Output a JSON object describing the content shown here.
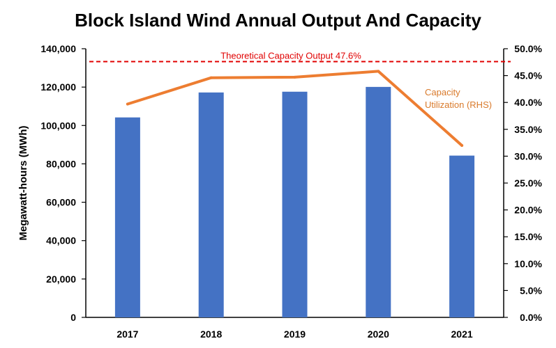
{
  "chart_data": {
    "type": "bar",
    "title": "Block Island Wind Annual Output And Capacity",
    "ylabel": "Megawatt-hours (MWh)",
    "xlabel": "",
    "categories": [
      "2017",
      "2018",
      "2019",
      "2020",
      "2021"
    ],
    "series": [
      {
        "type": "bar",
        "values": [
          104200,
          117200,
          117600,
          120100,
          84300
        ],
        "axis": "left",
        "color": "#4472c4"
      },
      {
        "type": "line",
        "name": "Capacity Utilization (RHS)",
        "values": [
          39.7,
          44.6,
          44.7,
          45.8,
          32.0
        ],
        "axis": "right",
        "color": "#ed7d31"
      }
    ],
    "reference_line": {
      "label": "Theoretical Capacity Output 47.6%",
      "value": 47.6,
      "axis": "right",
      "color": "#e00000",
      "style": "dashed"
    },
    "ylim": [
      0,
      140000
    ],
    "y_ticks": [
      "0",
      "20,000",
      "40,000",
      "60,000",
      "80,000",
      "100,000",
      "120,000",
      "140,000"
    ],
    "y2lim": [
      0,
      50
    ],
    "y2_ticks": [
      "0.0%",
      "5.0%",
      "10.0%",
      "15.0%",
      "20.0%",
      "25.0%",
      "30.0%",
      "35.0%",
      "40.0%",
      "45.0%",
      "50.0%"
    ],
    "grid": false,
    "legend": "none"
  }
}
